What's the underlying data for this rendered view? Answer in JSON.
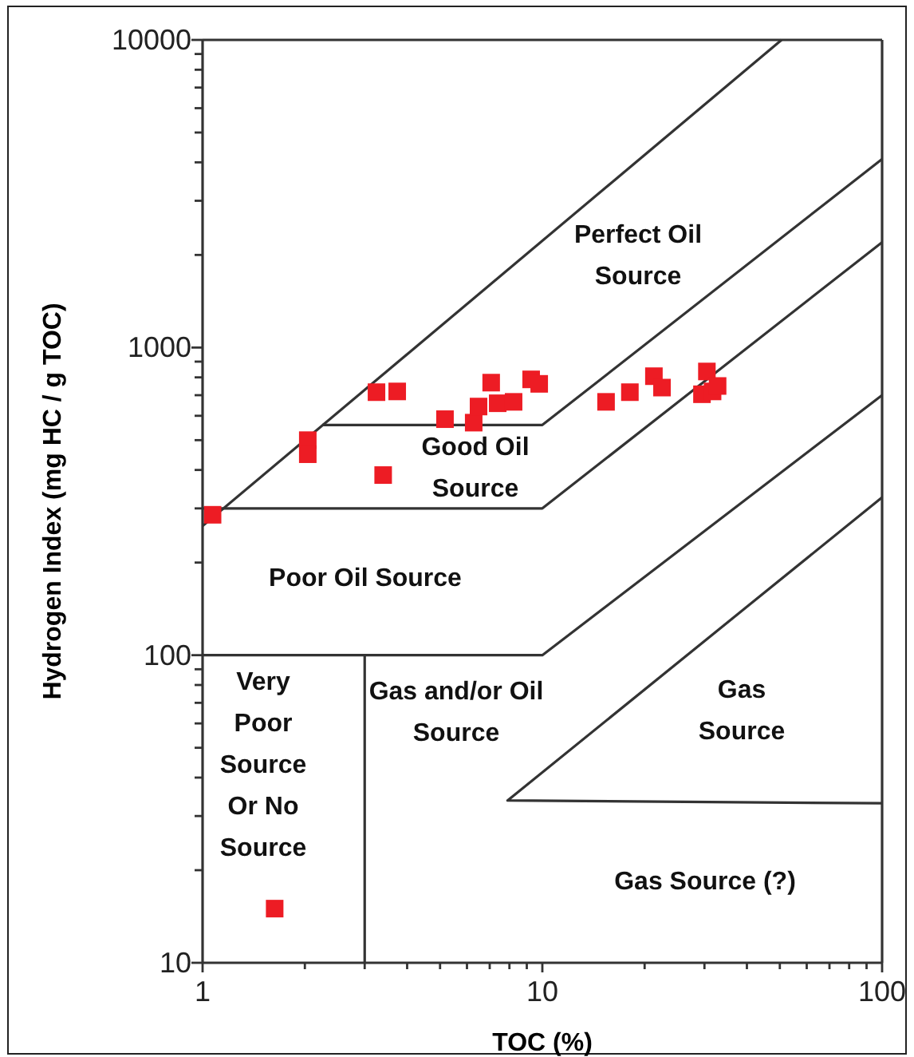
{
  "chart_data": {
    "type": "scatter",
    "xlabel": "TOC (%)",
    "ylabel": "Hydrogen Index (mg HC / g TOC)",
    "log": "xy",
    "xlim": [
      1,
      100
    ],
    "ylim": [
      10,
      10000
    ],
    "xticks": [
      1,
      {
        "value": 2,
        "label": null
      },
      {
        "value": 3,
        "label": null
      },
      {
        "value": 4,
        "label": null
      },
      {
        "value": 5,
        "label": null
      },
      {
        "value": 6,
        "label": null
      },
      {
        "value": 7,
        "label": null
      },
      {
        "value": 8,
        "label": null
      },
      {
        "value": 9,
        "label": null
      },
      10,
      {
        "value": 20,
        "label": null
      },
      {
        "value": 30,
        "label": null
      },
      {
        "value": 40,
        "label": null
      },
      {
        "value": 50,
        "label": null
      },
      {
        "value": 60,
        "label": null
      },
      {
        "value": 70,
        "label": null
      },
      {
        "value": 80,
        "label": null
      },
      {
        "value": 90,
        "label": null
      },
      100
    ],
    "yticks": [
      10,
      {
        "value": 20,
        "label": null
      },
      {
        "value": 30,
        "label": null
      },
      {
        "value": 40,
        "label": null
      },
      {
        "value": 50,
        "label": null
      },
      {
        "value": 60,
        "label": null
      },
      {
        "value": 70,
        "label": null
      },
      {
        "value": 80,
        "label": null
      },
      {
        "value": 90,
        "label": null
      },
      100,
      {
        "value": 200,
        "label": null
      },
      {
        "value": 300,
        "label": null
      },
      {
        "value": 400,
        "label": null
      },
      {
        "value": 500,
        "label": null
      },
      {
        "value": 600,
        "label": null
      },
      {
        "value": 700,
        "label": null
      },
      {
        "value": 800,
        "label": null
      },
      {
        "value": 900,
        "label": null
      },
      1000,
      {
        "value": 2000,
        "label": null
      },
      {
        "value": 3000,
        "label": null
      },
      {
        "value": 4000,
        "label": null
      },
      {
        "value": 5000,
        "label": null
      },
      {
        "value": 6000,
        "label": null
      },
      {
        "value": 7000,
        "label": null
      },
      {
        "value": 8000,
        "label": null
      },
      {
        "value": 9000,
        "label": null
      },
      10000
    ],
    "series": [
      {
        "marker": "square",
        "color": "#ed1c24",
        "x": [
          1.07,
          2.04,
          2.04,
          3.25,
          3.74,
          3.4,
          5.17,
          6.28,
          6.49,
          7.07,
          7.39,
          8.23,
          9.27,
          9.79,
          15.4,
          18.1,
          21.3,
          22.5,
          29.5,
          30.5,
          31.7,
          32.8,
          1.63
        ],
        "values": [
          286,
          500,
          450,
          716,
          720,
          385,
          585,
          570,
          643,
          769,
          659,
          666,
          788,
          762,
          666,
          716,
          807,
          741,
          705,
          836,
          720,
          750,
          15
        ]
      },
      {
        "type": "line",
        "marker": "none",
        "color": "#333333",
        "x": [
          1,
          50.6
        ],
        "values": [
          263,
          10000
        ]
      },
      {
        "type": "line",
        "marker": "none",
        "color": "#333333",
        "x": [
          2.25,
          10,
          100
        ],
        "values": [
          560,
          560,
          4100
        ]
      },
      {
        "type": "line",
        "marker": "none",
        "color": "#333333",
        "x": [
          1,
          10,
          100
        ],
        "values": [
          300,
          300,
          2200
        ]
      },
      {
        "type": "line",
        "marker": "none",
        "color": "#333333",
        "x": [
          1,
          10,
          100
        ],
        "values": [
          100,
          100,
          700
        ]
      },
      {
        "type": "line",
        "marker": "none",
        "color": "#333333",
        "x": [
          100,
          7.9,
          100
        ],
        "values": [
          326,
          33.7,
          33
        ]
      },
      {
        "type": "line",
        "marker": "none",
        "color": "#333333",
        "x": [
          3,
          3
        ],
        "values": [
          100,
          10
        ]
      }
    ],
    "annotations": [
      "Perfect Oil\nSource",
      "Good Oil\nSource",
      "Poor Oil Source",
      "Very\nPoor\nSource\nOr No\nSource",
      "Gas and/or Oil\nSource",
      "Gas\nSource",
      "Gas Source (?)"
    ]
  }
}
